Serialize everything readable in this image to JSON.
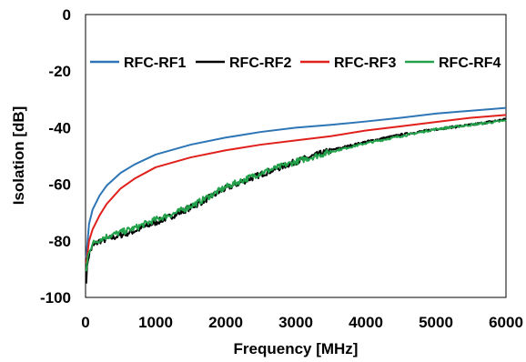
{
  "chart_data": {
    "type": "line",
    "title": "",
    "xlabel": "Frequency [MHz]",
    "ylabel": "Isolation [dB]",
    "xlim": [
      0,
      6000
    ],
    "ylim": [
      -100,
      0
    ],
    "xticks": [
      0,
      1000,
      2000,
      3000,
      4000,
      5000,
      6000
    ],
    "yticks": [
      0,
      -20,
      -40,
      -60,
      -80,
      -100
    ],
    "grid": false,
    "legend_placement": "top",
    "series": [
      {
        "name": "RFC-RF1",
        "color": "#2e75b6",
        "x": [
          10,
          50,
          100,
          200,
          300,
          500,
          700,
          1000,
          1500,
          2000,
          2500,
          3000,
          3500,
          4000,
          4500,
          5000,
          5500,
          6000
        ],
        "y": [
          -86,
          -74,
          -69,
          -64,
          -60.5,
          -56,
          -53,
          -49.5,
          -46,
          -43.5,
          -41.5,
          -40,
          -39,
          -37.8,
          -36.5,
          -35,
          -34,
          -33
        ]
      },
      {
        "name": "RFC-RF2",
        "color": "#000000",
        "x": [
          10,
          30,
          60,
          100,
          200,
          300,
          500,
          700,
          1000,
          1300,
          1600,
          2000,
          2500,
          3000,
          3500,
          4000,
          4500,
          5000,
          5500,
          6000
        ],
        "y": [
          -94,
          -87,
          -84,
          -82,
          -80,
          -79.5,
          -78,
          -76.5,
          -73.5,
          -70.5,
          -67,
          -61.5,
          -56.5,
          -52,
          -48,
          -45,
          -42.5,
          -40.5,
          -39,
          -37
        ]
      },
      {
        "name": "RFC-RF3",
        "color": "#e0201b",
        "x": [
          10,
          50,
          100,
          200,
          300,
          500,
          700,
          1000,
          1500,
          2000,
          2500,
          3000,
          3500,
          4000,
          4500,
          5000,
          5500,
          6000
        ],
        "y": [
          -88,
          -80,
          -76,
          -71,
          -67,
          -61.5,
          -58,
          -54,
          -50.5,
          -48,
          -46,
          -44.5,
          -43,
          -41,
          -39.5,
          -38,
          -36.5,
          -35.5
        ]
      },
      {
        "name": "RFC-RF4",
        "color": "#22a24a",
        "x": [
          10,
          30,
          60,
          100,
          200,
          300,
          500,
          700,
          1000,
          1300,
          1600,
          2000,
          2500,
          3000,
          3500,
          4000,
          4500,
          5000,
          5500,
          6000
        ],
        "y": [
          -91,
          -86,
          -83,
          -81,
          -79.5,
          -78.5,
          -77,
          -75.5,
          -72.5,
          -70,
          -66.5,
          -61,
          -56,
          -52,
          -48.5,
          -45.5,
          -43,
          -40.5,
          -39,
          -37.5
        ]
      }
    ]
  }
}
